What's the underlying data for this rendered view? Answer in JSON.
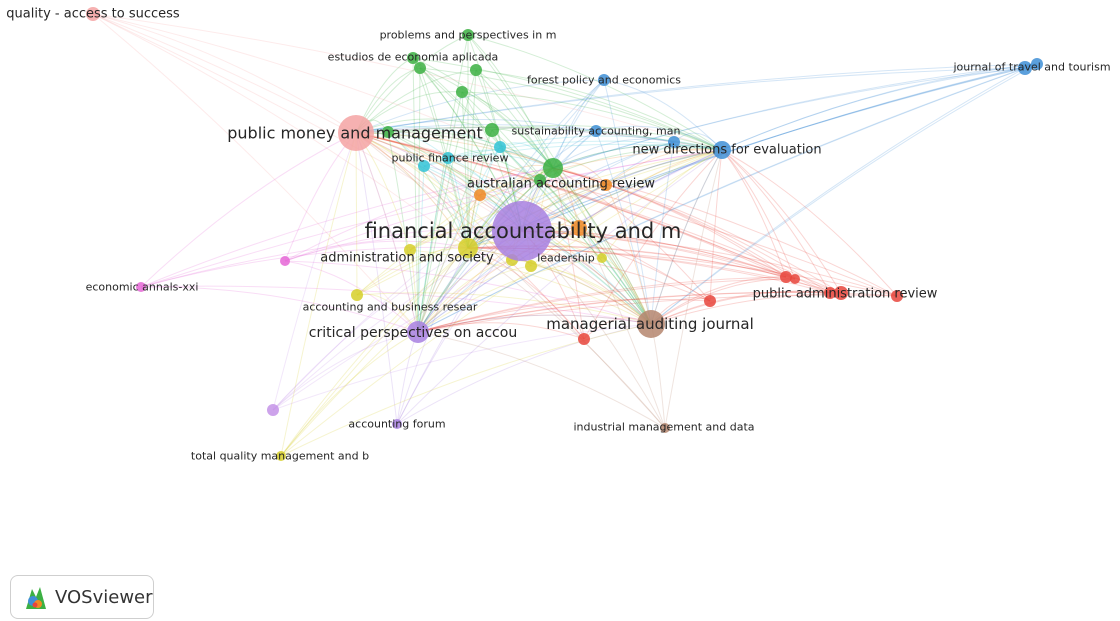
{
  "app": {
    "logo_text": "VOSviewer",
    "logo_icon": "vosviewer-logo-icon"
  },
  "clusters": {
    "red": "#e8453c",
    "pink": "#f4a3a3",
    "green": "#3cb043",
    "blue": "#3f8fd6",
    "purple": "#a880e0",
    "yellow": "#d6cf2a",
    "orange": "#f08a24",
    "brown": "#b5866e",
    "cyan": "#33c3d6",
    "magenta": "#e566d6",
    "lilac": "#c493e8"
  },
  "nodes": [
    {
      "id": "fam",
      "label": "financial accountability and m",
      "cluster": "purple",
      "weight": 10
    },
    {
      "id": "pmm",
      "label": "public money and management",
      "cluster": "pink",
      "weight": 6
    },
    {
      "id": "aar",
      "label": "australian accounting review",
      "cluster": "green",
      "weight": 4
    },
    {
      "id": "aas",
      "label": "administration and society",
      "cluster": "yellow",
      "weight": 3
    },
    {
      "id": "maj",
      "label": "managerial auditing journal",
      "cluster": "brown",
      "weight": 5
    },
    {
      "id": "cpa",
      "label": "critical perspectives on accou",
      "cluster": "purple",
      "weight": 4
    },
    {
      "id": "ndfe",
      "label": "new directions for evaluation",
      "cluster": "blue",
      "weight": 3
    },
    {
      "id": "par",
      "label": "public administration review",
      "cluster": "red",
      "weight": 3
    },
    {
      "id": "qas",
      "label": "quality - access to success",
      "cluster": "pink",
      "weight": 2
    },
    {
      "id": "ppm",
      "label": "problems and perspectives in m",
      "cluster": "green",
      "weight": 2
    },
    {
      "id": "eea",
      "label": "estudios de economia aplicada",
      "cluster": "green",
      "weight": 2
    },
    {
      "id": "fpe",
      "label": "forest policy and economics",
      "cluster": "blue",
      "weight": 2
    },
    {
      "id": "jtt",
      "label": "journal of travel and tourism",
      "cluster": "blue",
      "weight": 2
    },
    {
      "id": "sam",
      "label": "sustainability accounting, man",
      "cluster": "blue",
      "weight": 2
    },
    {
      "id": "pfr",
      "label": "public finance review",
      "cluster": "cyan",
      "weight": 2
    },
    {
      "id": "lead",
      "label": "leadership",
      "cluster": "yellow",
      "weight": 2
    },
    {
      "id": "eax",
      "label": "economic annals-xxi",
      "cluster": "magenta",
      "weight": 1
    },
    {
      "id": "abr",
      "label": "accounting and business resear",
      "cluster": "yellow",
      "weight": 2
    },
    {
      "id": "af",
      "label": "accounting forum",
      "cluster": "purple",
      "weight": 2
    },
    {
      "id": "tqm",
      "label": "total quality management and b",
      "cluster": "yellow",
      "weight": 1
    },
    {
      "id": "imd",
      "label": "industrial management and data",
      "cluster": "brown",
      "weight": 1
    }
  ]
}
